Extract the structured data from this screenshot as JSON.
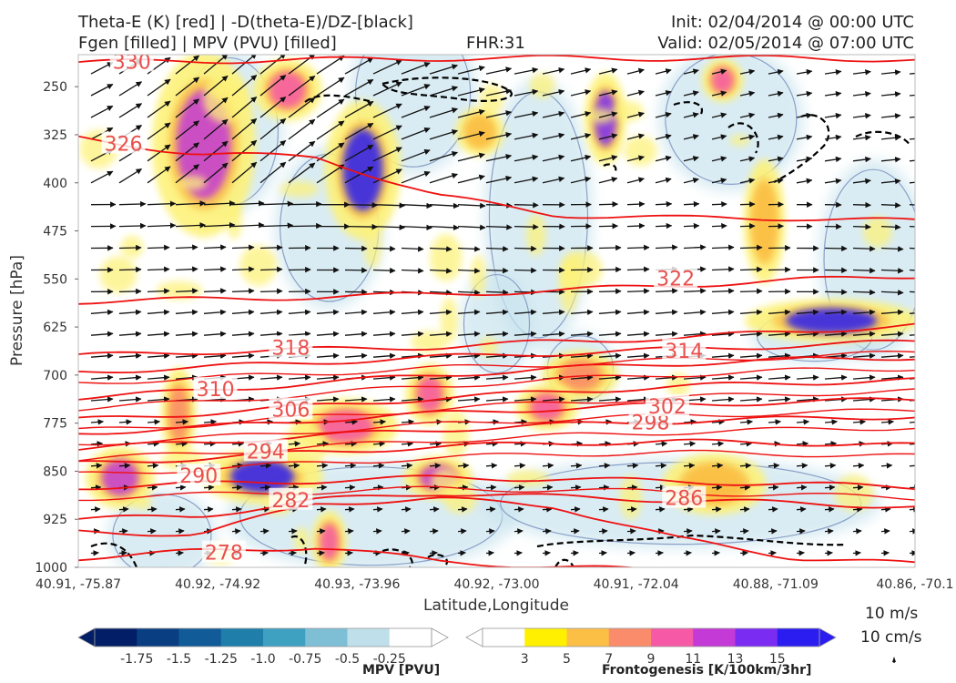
{
  "header": {
    "line1_left": "Theta-E (K) [red] | -D(theta-E)/DZ-[black]",
    "line2_left": "Fgen [filled] | MPV (PVU) [filled]",
    "fhr": "FHR:31",
    "init": "Init: 02/04/2014 @ 00:00 UTC",
    "valid": "Valid: 02/05/2014 @ 07:00 UTC"
  },
  "colors": {
    "theta_e": "#ee1111",
    "ddz": "#000000",
    "mpv_line": "#8aa0c8",
    "mpv_fill": "#c9e4ee",
    "fgen_yellow": "#fdf27a",
    "fgen_orange": "#fbbf45",
    "fgen_salmon": "#fb8c6b",
    "fgen_pink": "#f659a6",
    "fgen_magenta": "#c33ad6",
    "fgen_purple": "#7b2cf2",
    "fgen_blue": "#2b1cf0"
  },
  "chart_data": {
    "type": "cross-section",
    "xlabel": "Latitude,Longitude",
    "ylabel": "Pressure [hPa]",
    "x_ticks": [
      "40.91, -75.87",
      "40.92, -74.92",
      "40.93, -73.96",
      "40.92, -73.00",
      "40.91, -72.04",
      "40.88, -71.09",
      "40.86, -70.1"
    ],
    "y_ticks": [
      250,
      325,
      400,
      475,
      550,
      625,
      700,
      775,
      850,
      925,
      1000
    ],
    "ylim": [
      1000,
      200
    ],
    "y_scale": "linear-inverted",
    "theta_e_contours": [
      {
        "value": 278,
        "label": "278"
      },
      {
        "value": 282,
        "label": "282"
      },
      {
        "value": 286,
        "label": "286"
      },
      {
        "value": 290,
        "label": "290"
      },
      {
        "value": 294,
        "label": "294"
      },
      {
        "value": 298,
        "label": "298"
      },
      {
        "value": 302,
        "label": "302"
      },
      {
        "value": 306,
        "label": "306"
      },
      {
        "value": 310,
        "label": "310"
      },
      {
        "value": 314,
        "label": "314"
      },
      {
        "value": 318,
        "label": "318"
      },
      {
        "value": 322,
        "label": "322"
      },
      {
        "value": 326,
        "label": "326"
      },
      {
        "value": 330,
        "label": "330"
      }
    ],
    "mpv_colorbar": {
      "label": "MPV [PVU]",
      "ticks": [
        "-1.75",
        "-1.5",
        "-1.25",
        "-1.0",
        "-0.75",
        "-0.5",
        "-0.25"
      ],
      "colors": [
        "#021e66",
        "#093e82",
        "#115c98",
        "#1f7faa",
        "#3ea1c2",
        "#7ebfd6",
        "#bfe0ea",
        "#ffffff"
      ]
    },
    "fgen_colorbar": {
      "label": "Frontogenesis [K/100km/3hr]",
      "ticks": [
        "3",
        "5",
        "7",
        "9",
        "11",
        "13",
        "15"
      ],
      "colors": [
        "#ffffff",
        "#fff000",
        "#fbbf45",
        "#fb8c6b",
        "#f659a6",
        "#c33ad6",
        "#7b2cf2",
        "#2b1cf0"
      ]
    },
    "wind_key": {
      "horizontal": "10 m/s",
      "vertical": "10 cm/s"
    }
  }
}
